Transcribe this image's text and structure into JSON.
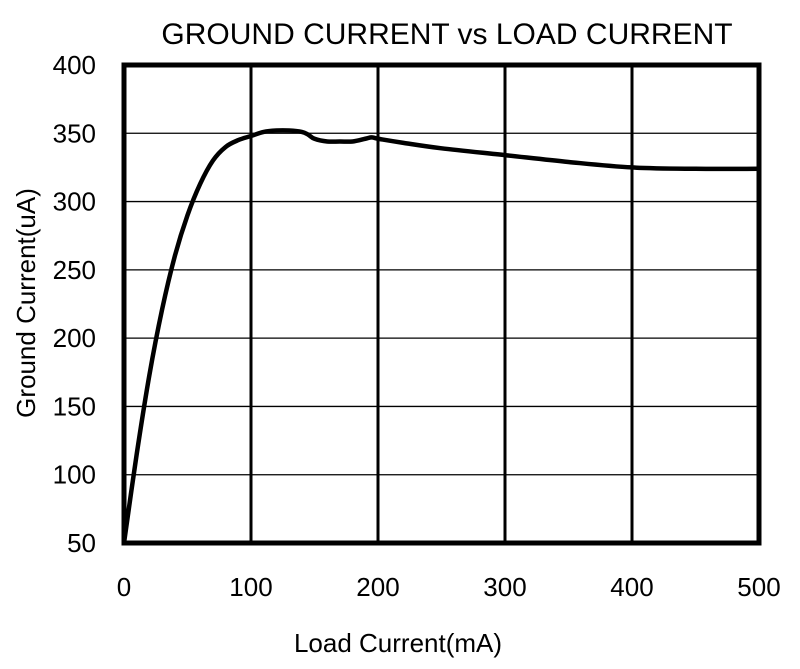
{
  "chart_data": {
    "type": "line",
    "title": "GROUND CURRENT vs LOAD CURRENT",
    "xlabel": "Load Current(mA)",
    "ylabel": "Ground Current(uA)",
    "xlim": [
      0,
      500
    ],
    "ylim": [
      50,
      400
    ],
    "xticks": [
      0,
      100,
      200,
      300,
      400,
      500
    ],
    "yticks": [
      50,
      100,
      150,
      200,
      250,
      300,
      350,
      400
    ],
    "xtick_labels": [
      "0",
      "100",
      "200",
      "300",
      "400",
      "500"
    ],
    "ytick_labels": [
      "50",
      "100",
      "150",
      "200",
      "250",
      "300",
      "350",
      "400"
    ],
    "grid": true,
    "legend": "none",
    "colors": {
      "line": "#000000",
      "grid": "#000000",
      "frame": "#000000",
      "background": "#ffffff"
    },
    "series": [
      {
        "name": "Ground Current",
        "x": [
          0,
          10,
          20,
          30,
          40,
          50,
          60,
          70,
          80,
          90,
          100,
          110,
          120,
          130,
          140,
          145,
          150,
          160,
          170,
          180,
          190,
          195,
          200,
          220,
          250,
          300,
          350,
          400,
          450,
          500
        ],
        "y": [
          50,
          115,
          173,
          221,
          260,
          290,
          313,
          330,
          340,
          345,
          348,
          351,
          352,
          352,
          351,
          349,
          346,
          344,
          344,
          344,
          346,
          347,
          346,
          343,
          339,
          334,
          329,
          325,
          324,
          324
        ]
      }
    ]
  }
}
